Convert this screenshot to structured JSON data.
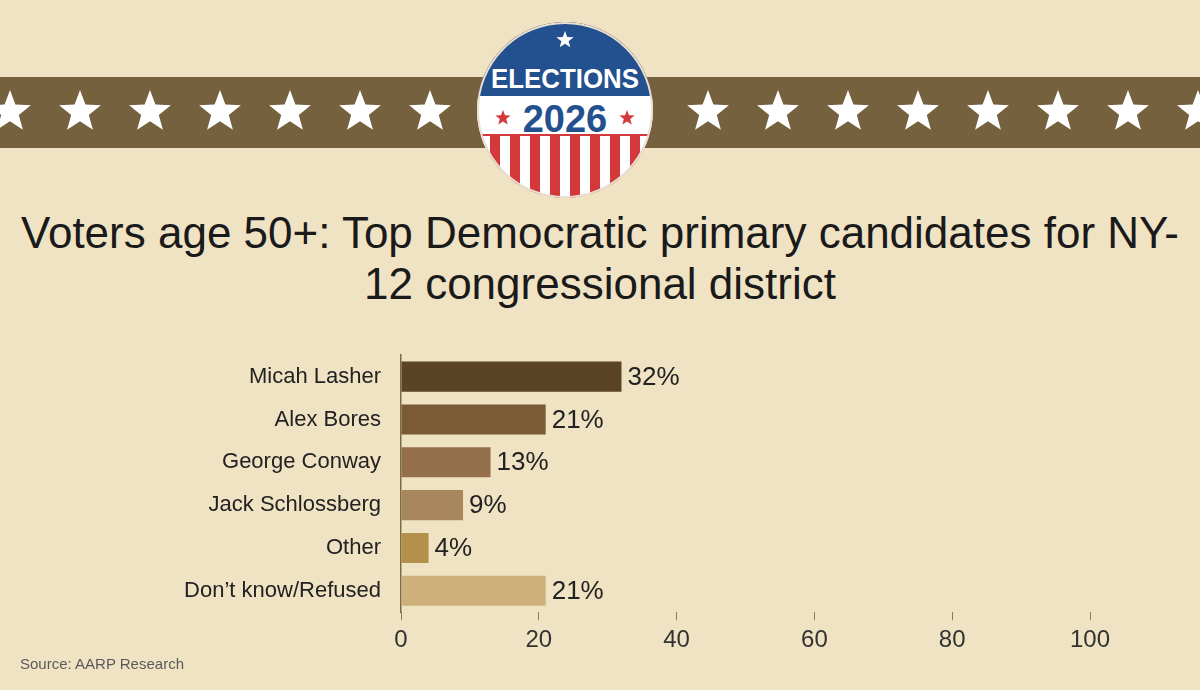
{
  "badge": {
    "top": "ELECTIONS",
    "bottom": "2026"
  },
  "chart_data": {
    "type": "bar",
    "orientation": "horizontal",
    "title": "Voters age 50+: Top Democratic primary candidates for NY-12 congressional district",
    "source": "Source: AARP Research",
    "categories": [
      "Micah Lasher",
      "Alex Bores",
      "George Conway",
      "Jack Schlossberg",
      "Other",
      "Don’t know/Refused"
    ],
    "values": [
      32,
      21,
      13,
      9,
      4,
      21
    ],
    "value_labels": [
      "32%",
      "21%",
      "13%",
      "9%",
      "4%",
      "21%"
    ],
    "colors": [
      "#5b4426",
      "#7b5b35",
      "#93704a",
      "#a8875e",
      "#b3914a",
      "#cdb07a"
    ],
    "xlim": [
      0,
      100
    ],
    "xticks": [
      0,
      20,
      40,
      60,
      80,
      100
    ],
    "grid": false,
    "data_labels": true
  }
}
